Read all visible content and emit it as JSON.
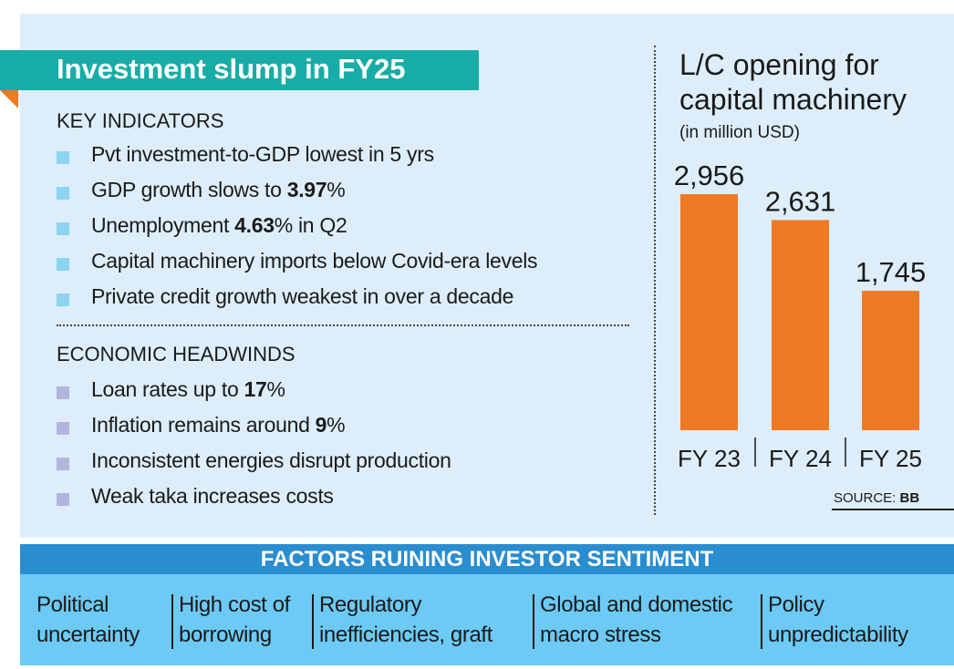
{
  "title": "Investment slump in FY25",
  "key_indicators": {
    "heading": "KEY INDICATORS",
    "items": [
      {
        "text": "Pvt investment-to-GDP lowest in 5 yrs"
      },
      {
        "text": "GDP growth slows to ",
        "bold": "3.97",
        "tail": "%"
      },
      {
        "text": "Unemployment ",
        "bold": "4.63",
        "tail": "% in Q2"
      },
      {
        "text": "Capital machinery imports below Covid-era levels"
      },
      {
        "text": "Private credit growth weakest in over a decade"
      }
    ]
  },
  "headwinds": {
    "heading": "ECONOMIC HEADWINDS",
    "items": [
      {
        "text": "Loan rates up to ",
        "bold": "17",
        "tail": "%"
      },
      {
        "text": "Inflation remains around ",
        "bold": "9",
        "tail": "%"
      },
      {
        "text": "Inconsistent energies disrupt production"
      },
      {
        "text": "Weak taka increases costs"
      }
    ]
  },
  "chart_data": {
    "type": "bar",
    "title": "L/C opening for capital machinery",
    "subtitle": "(in million USD)",
    "categories": [
      "FY 23",
      "FY 24",
      "FY 25"
    ],
    "values": [
      2956,
      2631,
      1745
    ],
    "value_labels": [
      "2,956",
      "2,631",
      "1,745"
    ],
    "color": "#f07a24"
  },
  "source": {
    "label": "SOURCE:",
    "name": "BB"
  },
  "factors": {
    "heading": "FACTORS RUINING INVESTOR SENTIMENT",
    "items": [
      [
        "Political",
        "uncertainty"
      ],
      [
        "High cost of",
        "borrowing"
      ],
      [
        "Regulatory",
        "inefficiencies, graft"
      ],
      [
        "Global and domestic",
        "macro stress"
      ],
      [
        "Policy",
        "unpredictability"
      ]
    ]
  }
}
